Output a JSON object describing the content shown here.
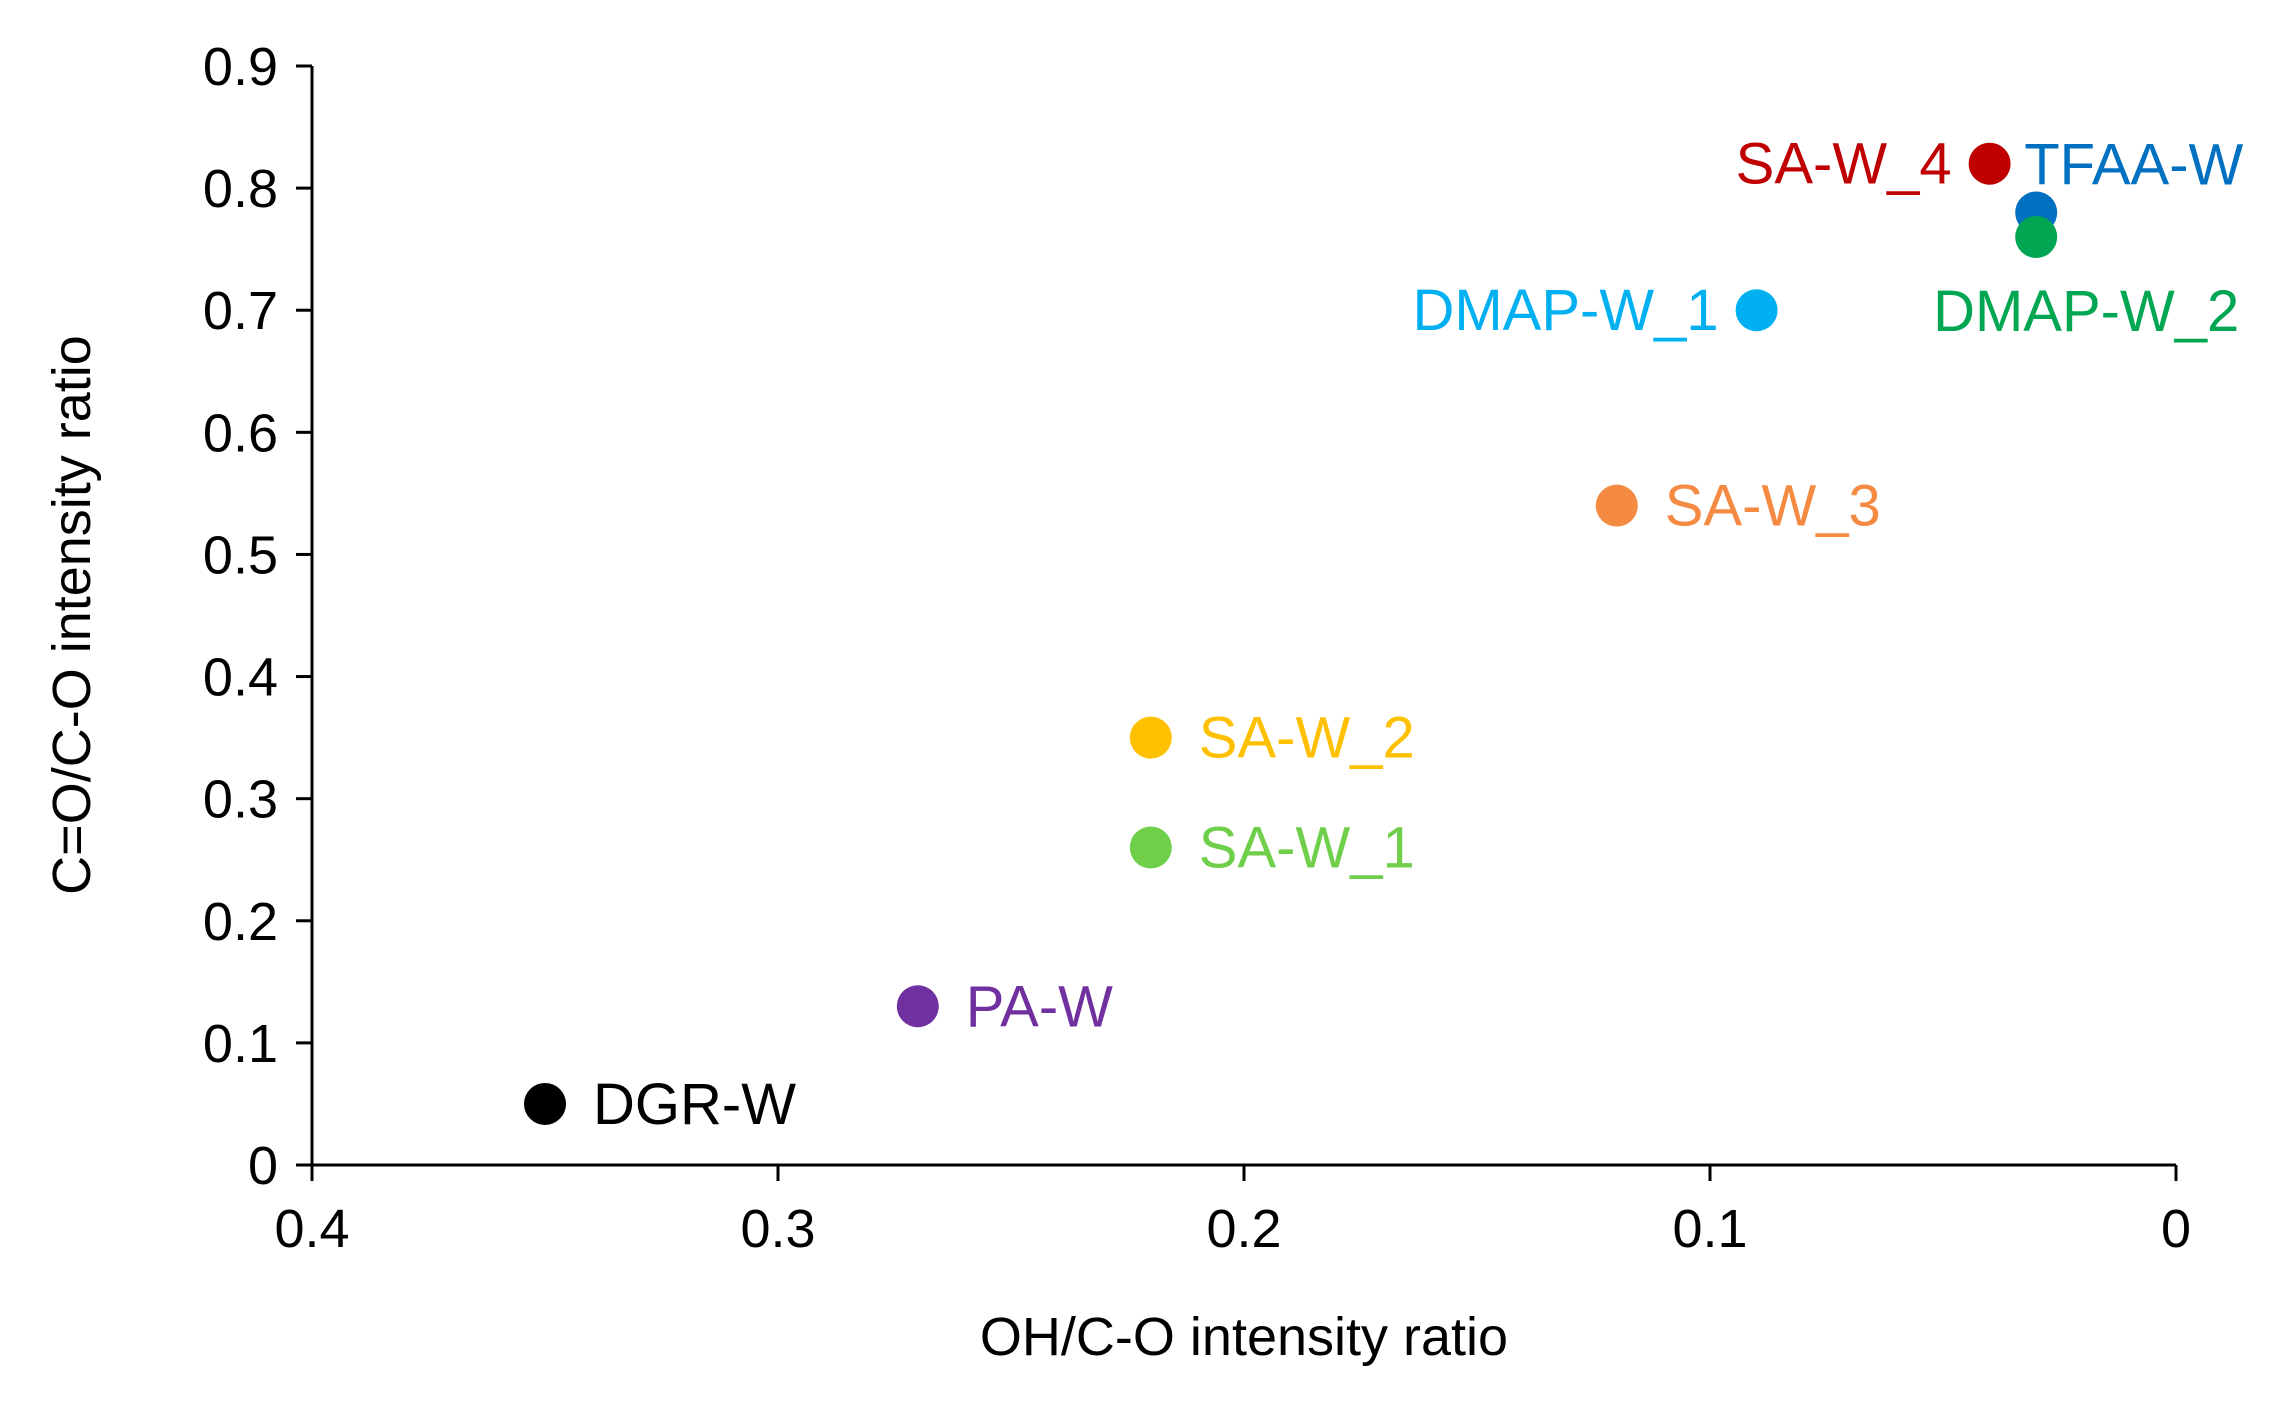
{
  "chart_data": {
    "type": "scatter",
    "title": "",
    "xlabel": "OH/C-O intensity ratio",
    "ylabel": "C=O/C-O intensity ratio",
    "xlim": [
      0.4,
      0
    ],
    "ylim": [
      0,
      0.9
    ],
    "x_reversed": true,
    "grid": false,
    "legend": "none",
    "xticks": [
      0.4,
      0.3,
      0.2,
      0.1,
      0
    ],
    "xtick_labels": [
      "0.4",
      "0.3",
      "0.2",
      "0.1",
      "0"
    ],
    "yticks": [
      0,
      0.1,
      0.2,
      0.3,
      0.4,
      0.5,
      0.6,
      0.7,
      0.8,
      0.9
    ],
    "ytick_labels": [
      "0",
      "0.1",
      "0.2",
      "0.3",
      "0.4",
      "0.5",
      "0.6",
      "0.7",
      "0.8",
      "0.9"
    ],
    "points": [
      {
        "label": "DGR-W",
        "x": 0.35,
        "y": 0.05,
        "color": "#000000",
        "label_side": "right"
      },
      {
        "label": "PA-W",
        "x": 0.27,
        "y": 0.13,
        "color": "#7030A0",
        "label_side": "right"
      },
      {
        "label": "SA-W_1",
        "x": 0.22,
        "y": 0.26,
        "color": "#70CF4A",
        "label_side": "right"
      },
      {
        "label": "SA-W_2",
        "x": 0.22,
        "y": 0.35,
        "color": "#FFC000",
        "label_side": "right"
      },
      {
        "label": "SA-W_3",
        "x": 0.12,
        "y": 0.54,
        "color": "#F58A42",
        "label_side": "right"
      },
      {
        "label": "DMAP-W_1",
        "x": 0.09,
        "y": 0.7,
        "color": "#00B0F0",
        "label_side": "left"
      },
      {
        "label": "SA-W_4",
        "x": 0.04,
        "y": 0.82,
        "color": "#C00000",
        "label_side": "left"
      },
      {
        "label": "TFAA-W",
        "x": 0.03,
        "y": 0.78,
        "color": "#0070C0",
        "label_side": "above-right"
      },
      {
        "label": "DMAP-W_2",
        "x": 0.03,
        "y": 0.76,
        "color": "#00A651",
        "label_side": "below"
      }
    ]
  }
}
